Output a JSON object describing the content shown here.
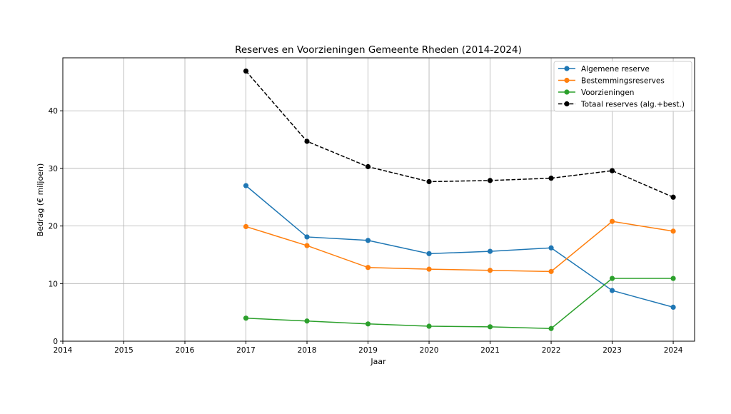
{
  "chart_data": {
    "type": "line",
    "title": "Reserves en Voorzieningen Gemeente Rheden (2014-2024)",
    "xlabel": "Jaar",
    "ylabel": "Bedrag (€ miljoen)",
    "xlim": [
      2014,
      2024.35
    ],
    "ylim": [
      0,
      49.2
    ],
    "xticks": [
      2014,
      2015,
      2016,
      2017,
      2018,
      2019,
      2020,
      2021,
      2022,
      2023,
      2024
    ],
    "yticks": [
      0,
      10,
      20,
      30,
      40
    ],
    "grid": true,
    "legend_position": "top-right",
    "x": [
      2017,
      2018,
      2019,
      2020,
      2021,
      2022,
      2023,
      2024
    ],
    "series": [
      {
        "name": "Algemene reserve",
        "color": "#1f77b4",
        "dashed": false,
        "values": [
          27.0,
          18.1,
          17.5,
          15.2,
          15.6,
          16.2,
          8.8,
          5.9
        ]
      },
      {
        "name": "Bestemmingsreserves",
        "color": "#ff7f0e",
        "dashed": false,
        "values": [
          19.9,
          16.6,
          12.8,
          12.5,
          12.3,
          12.1,
          20.8,
          19.1
        ]
      },
      {
        "name": "Voorzieningen",
        "color": "#2ca02c",
        "dashed": false,
        "values": [
          4.0,
          3.5,
          3.0,
          2.6,
          2.5,
          2.2,
          10.9,
          10.9
        ]
      },
      {
        "name": "Totaal reserves (alg.+best.)",
        "color": "#000000",
        "dashed": true,
        "values": [
          46.9,
          34.7,
          30.3,
          27.7,
          27.9,
          28.3,
          29.6,
          25.0
        ]
      }
    ]
  }
}
